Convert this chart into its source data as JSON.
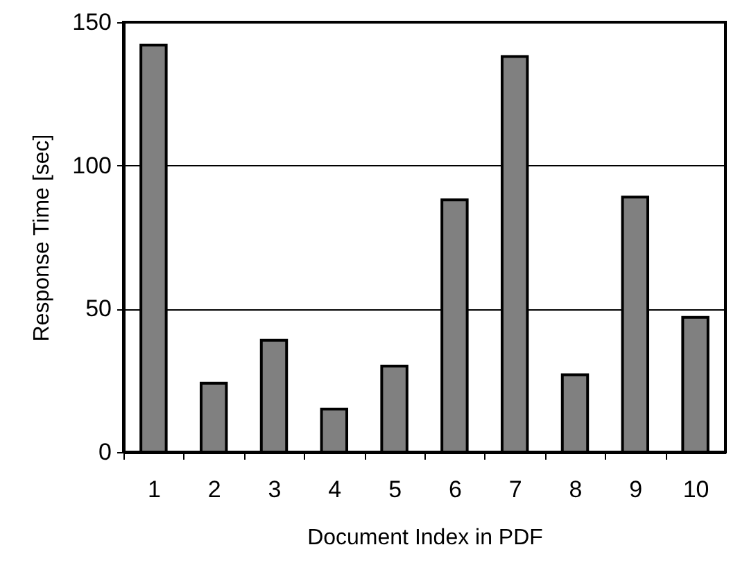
{
  "chart_data": {
    "type": "bar",
    "xlabel": "Document Index  in PDF",
    "ylabel": "Response Time [sec]",
    "categories": [
      "1",
      "2",
      "3",
      "4",
      "5",
      "6",
      "7",
      "8",
      "9",
      "10"
    ],
    "values": [
      142,
      24,
      39,
      15,
      30,
      88,
      138,
      27,
      89,
      47
    ],
    "color": "#808080",
    "ylim": [
      0,
      150
    ],
    "yticks": [
      0,
      50,
      100,
      150
    ],
    "grid": "y"
  }
}
